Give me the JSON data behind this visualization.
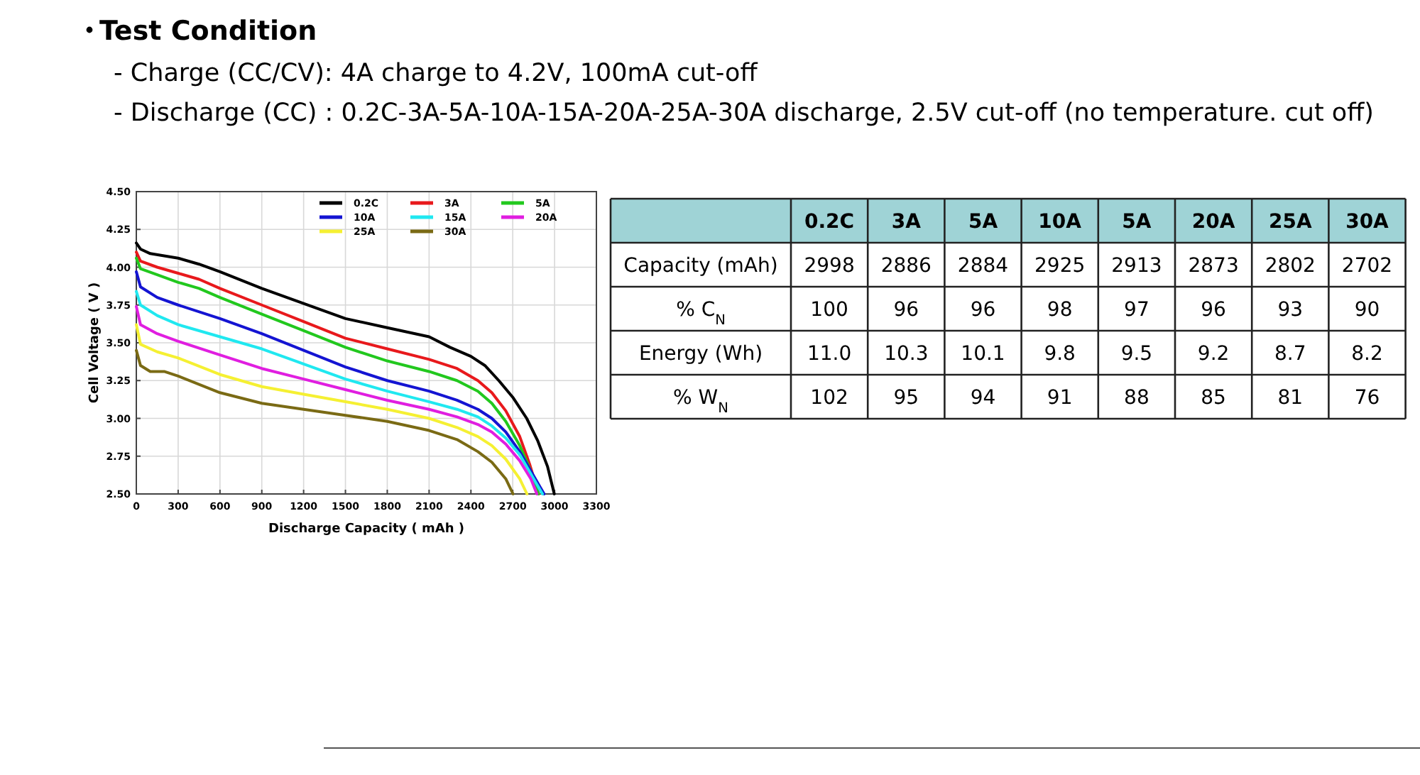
{
  "chart_data": [
    {
      "type": "line",
      "title": "Test Condition",
      "annotations": [
        "- Charge (CC/CV): 4A charge to 4.2V, 100mA cut-off",
        "- Discharge (CC) : 0.2C-3A-5A-10A-15A-20A-25A-30A  discharge, 2.5V cut-off  (no temperature. cut off)"
      ],
      "xlabel": "Discharge Capacity  ( mAh )",
      "ylabel": "Cell Voltage  ( V )",
      "xlim": [
        0,
        3300
      ],
      "ylim": [
        2.5,
        4.5
      ],
      "xticks": [
        0,
        300,
        600,
        900,
        1200,
        1500,
        1800,
        2100,
        2400,
        2700,
        3000,
        3300
      ],
      "yticks": [
        {
          "value": 2.5,
          "label": "2.50"
        },
        {
          "value": 2.75,
          "label": "2.75"
        },
        {
          "value": 3,
          "label": "3.00"
        },
        {
          "value": 3.25,
          "label": "3.25"
        },
        {
          "value": 3.5,
          "label": "3.50"
        },
        {
          "value": 3.75,
          "label": "3.75"
        },
        {
          "value": 4,
          "label": "4.00"
        },
        {
          "value": 4.25,
          "label": "4.25"
        },
        {
          "value": 4.5,
          "label": "4.50"
        }
      ],
      "grid": true,
      "legend": "top right",
      "series": [
        {
          "name": "0.2C",
          "color": "#000000",
          "x": [
            0,
            30,
            100,
            300,
            450,
            600,
            900,
            1200,
            1500,
            1800,
            2100,
            2250,
            2400,
            2500,
            2600,
            2700,
            2800,
            2880,
            2950,
            2998
          ],
          "values": [
            4.16,
            4.12,
            4.09,
            4.06,
            4.02,
            3.97,
            3.86,
            3.76,
            3.66,
            3.6,
            3.54,
            3.47,
            3.41,
            3.35,
            3.25,
            3.14,
            3.0,
            2.85,
            2.68,
            2.5
          ]
        },
        {
          "name": "3A",
          "color": "#e8191c",
          "x": [
            0,
            30,
            150,
            300,
            450,
            600,
            900,
            1200,
            1500,
            1800,
            2100,
            2300,
            2450,
            2550,
            2650,
            2750,
            2820,
            2886
          ],
          "values": [
            4.1,
            4.04,
            4.0,
            3.96,
            3.92,
            3.86,
            3.75,
            3.64,
            3.53,
            3.46,
            3.39,
            3.33,
            3.25,
            3.17,
            3.05,
            2.88,
            2.7,
            2.5
          ]
        },
        {
          "name": "5A",
          "color": "#22c81e",
          "x": [
            0,
            30,
            150,
            300,
            450,
            600,
            900,
            1200,
            1500,
            1800,
            2100,
            2300,
            2450,
            2550,
            2650,
            2750,
            2830,
            2884
          ],
          "values": [
            4.06,
            3.99,
            3.95,
            3.9,
            3.86,
            3.8,
            3.69,
            3.58,
            3.47,
            3.38,
            3.31,
            3.25,
            3.18,
            3.1,
            2.98,
            2.82,
            2.65,
            2.5
          ]
        },
        {
          "name": "10A",
          "color": "#1414d2",
          "x": [
            0,
            30,
            150,
            300,
            600,
            900,
            1200,
            1500,
            1800,
            2100,
            2300,
            2450,
            2550,
            2650,
            2750,
            2850,
            2925
          ],
          "values": [
            3.97,
            3.87,
            3.8,
            3.75,
            3.66,
            3.56,
            3.45,
            3.34,
            3.25,
            3.18,
            3.12,
            3.06,
            3.0,
            2.91,
            2.78,
            2.62,
            2.5
          ]
        },
        {
          "name": "15A",
          "color": "#20e8f0",
          "x": [
            0,
            30,
            150,
            300,
            600,
            900,
            1200,
            1500,
            1800,
            2100,
            2300,
            2450,
            2550,
            2650,
            2750,
            2850,
            2913
          ],
          "values": [
            3.84,
            3.75,
            3.68,
            3.62,
            3.54,
            3.46,
            3.36,
            3.26,
            3.18,
            3.11,
            3.06,
            3.01,
            2.95,
            2.87,
            2.76,
            2.6,
            2.5
          ]
        },
        {
          "name": "20A",
          "color": "#e01ee0",
          "x": [
            0,
            30,
            150,
            300,
            600,
            900,
            1200,
            1500,
            1800,
            2100,
            2300,
            2450,
            2550,
            2650,
            2750,
            2830,
            2873
          ],
          "values": [
            3.74,
            3.62,
            3.56,
            3.51,
            3.42,
            3.33,
            3.26,
            3.19,
            3.12,
            3.06,
            3.01,
            2.96,
            2.91,
            2.83,
            2.72,
            2.6,
            2.5
          ]
        },
        {
          "name": "25A",
          "color": "#f5f032",
          "x": [
            0,
            30,
            150,
            300,
            600,
            900,
            1200,
            1500,
            1800,
            2100,
            2300,
            2450,
            2550,
            2650,
            2750,
            2802
          ],
          "values": [
            3.62,
            3.49,
            3.44,
            3.4,
            3.29,
            3.21,
            3.16,
            3.11,
            3.06,
            3.0,
            2.94,
            2.88,
            2.82,
            2.73,
            2.6,
            2.5
          ]
        },
        {
          "name": "30A",
          "color": "#7a6a14",
          "x": [
            0,
            30,
            100,
            200,
            300,
            600,
            900,
            1200,
            1500,
            1800,
            2100,
            2300,
            2450,
            2550,
            2650,
            2702
          ],
          "values": [
            3.45,
            3.35,
            3.31,
            3.31,
            3.28,
            3.17,
            3.1,
            3.06,
            3.02,
            2.98,
            2.92,
            2.86,
            2.78,
            2.71,
            2.6,
            2.5
          ]
        }
      ]
    },
    {
      "type": "other",
      "categories": [
        "0.2C",
        "3A",
        "5A",
        "10A",
        "5A",
        "20A",
        "25A",
        "30A"
      ],
      "y_categories": [
        "Capacity (mAh)",
        "% C$_{N}$",
        "Energy (Wh)",
        "% W$_{N}$"
      ],
      "cell_labels": [
        [
          "2998",
          "2886",
          "2884",
          "2925",
          "2913",
          "2873",
          "2802",
          "2702"
        ],
        [
          "100",
          "96",
          "96",
          "98",
          "97",
          "96",
          "93",
          "90"
        ],
        [
          "11.0",
          "10.3",
          "10.1",
          "9.8",
          "9.5",
          "9.2",
          "8.7",
          "8.2"
        ],
        [
          "102",
          "95",
          "94",
          "91",
          "88",
          "85",
          "81",
          "76"
        ]
      ]
    }
  ]
}
